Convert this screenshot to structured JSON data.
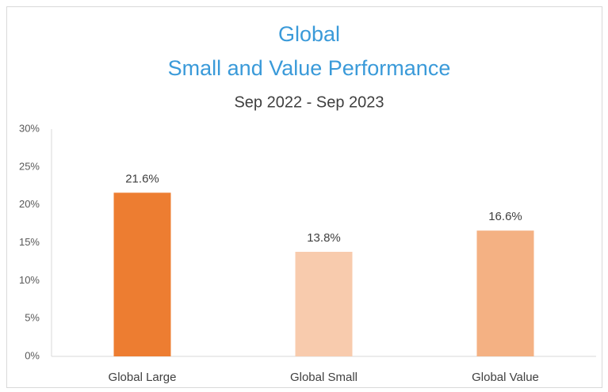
{
  "chart_data": {
    "type": "bar",
    "title": [
      "Global",
      "Small and Value Performance"
    ],
    "subtitle": "Sep 2022 - Sep 2023",
    "categories": [
      "Global Large",
      "Global Small",
      "Global Value"
    ],
    "values": [
      21.6,
      13.8,
      16.6
    ],
    "value_labels": [
      "21.6%",
      "13.8%",
      "16.6%"
    ],
    "colors": [
      "#ed7d31",
      "#f8cbad",
      "#f4b183"
    ],
    "ylim": [
      0,
      30
    ],
    "yticks": [
      {
        "value": 0,
        "label": "0%"
      },
      {
        "value": 5,
        "label": "5%"
      },
      {
        "value": 10,
        "label": "10%"
      },
      {
        "value": 15,
        "label": "15%"
      },
      {
        "value": 20,
        "label": "20%"
      },
      {
        "value": 25,
        "label": "25%"
      },
      {
        "value": 30,
        "label": "30%"
      }
    ],
    "grid": false
  }
}
